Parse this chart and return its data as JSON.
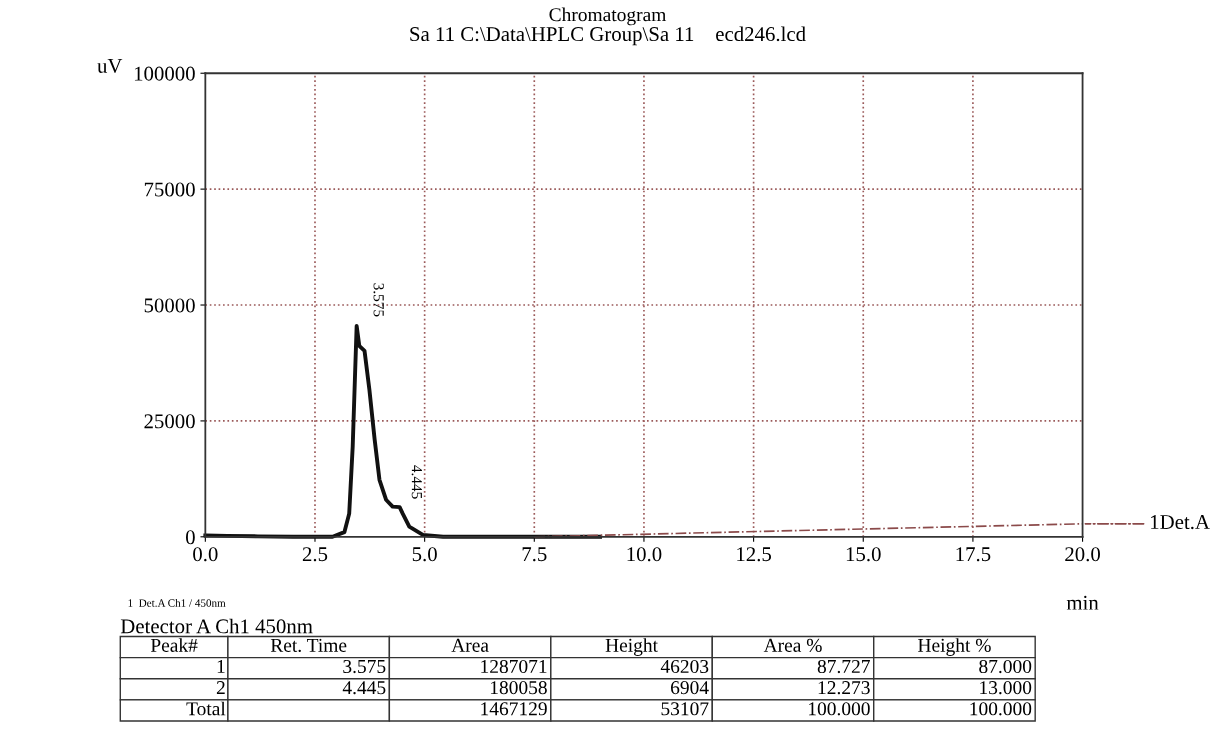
{
  "chart_data": {
    "type": "line",
    "title": "Chromatogram",
    "subtitle": "Sa 11 C:\\Data\\HPLC Group\\Sa 11    ecd246.lcd",
    "xlabel": "min",
    "ylabel": "uV",
    "xlim": [
      0,
      20
    ],
    "xticks": [
      {
        "value": 0,
        "label": "0.0"
      },
      2.5,
      {
        "value": 5,
        "label": "5.0"
      },
      7.5,
      {
        "value": 10,
        "label": "10.0"
      },
      12.5,
      {
        "value": 15,
        "label": "15.0"
      },
      17.5,
      {
        "value": 20,
        "label": "20.0"
      }
    ],
    "ylim": [
      0,
      100000
    ],
    "yticks": [
      0,
      25000,
      50000,
      75000,
      100000
    ],
    "grid": true,
    "legend": "right",
    "series": [
      {
        "color": "#111111",
        "line_style": "solid",
        "x": [
          0,
          0.5,
          1.2,
          2.0,
          2.9,
          3.17,
          3.28,
          3.36,
          3.41,
          3.45,
          3.51,
          3.63,
          3.74,
          3.86,
          3.97,
          4.12,
          4.27,
          4.43,
          4.5,
          4.65,
          4.96,
          5.42,
          6.0,
          9.0
        ],
        "values": [
          300,
          200,
          100,
          0,
          0,
          1000,
          5000,
          19500,
          34000,
          45500,
          41200,
          40100,
          31800,
          21000,
          12300,
          8000,
          6500,
          6400,
          5000,
          2200,
          400,
          0,
          0,
          0
        ]
      },
      {
        "name": "1Det.A",
        "color": "#8b4a4a",
        "line_style": "dashdot",
        "x": [
          7.5,
          20
        ],
        "values": [
          0,
          2800
        ]
      }
    ],
    "annotations": [
      {
        "text": "3.575",
        "x": 3.575,
        "y": 46203
      },
      {
        "text": "4.445",
        "x": 4.445,
        "y": 6904
      },
      "1  Det.A Ch1 / 450nm",
      "Detector A Ch1 450nm",
      "Peak#\tRet. Time\tArea\tHeight\tArea %\tHeight %",
      "1\t3.575\t1287071\t46203\t87.727\t87.000",
      "2\t4.445\t180058\t6904\t12.273\t13.000",
      "Total\t\t1467129\t53107\t100.000\t100.000"
    ]
  }
}
